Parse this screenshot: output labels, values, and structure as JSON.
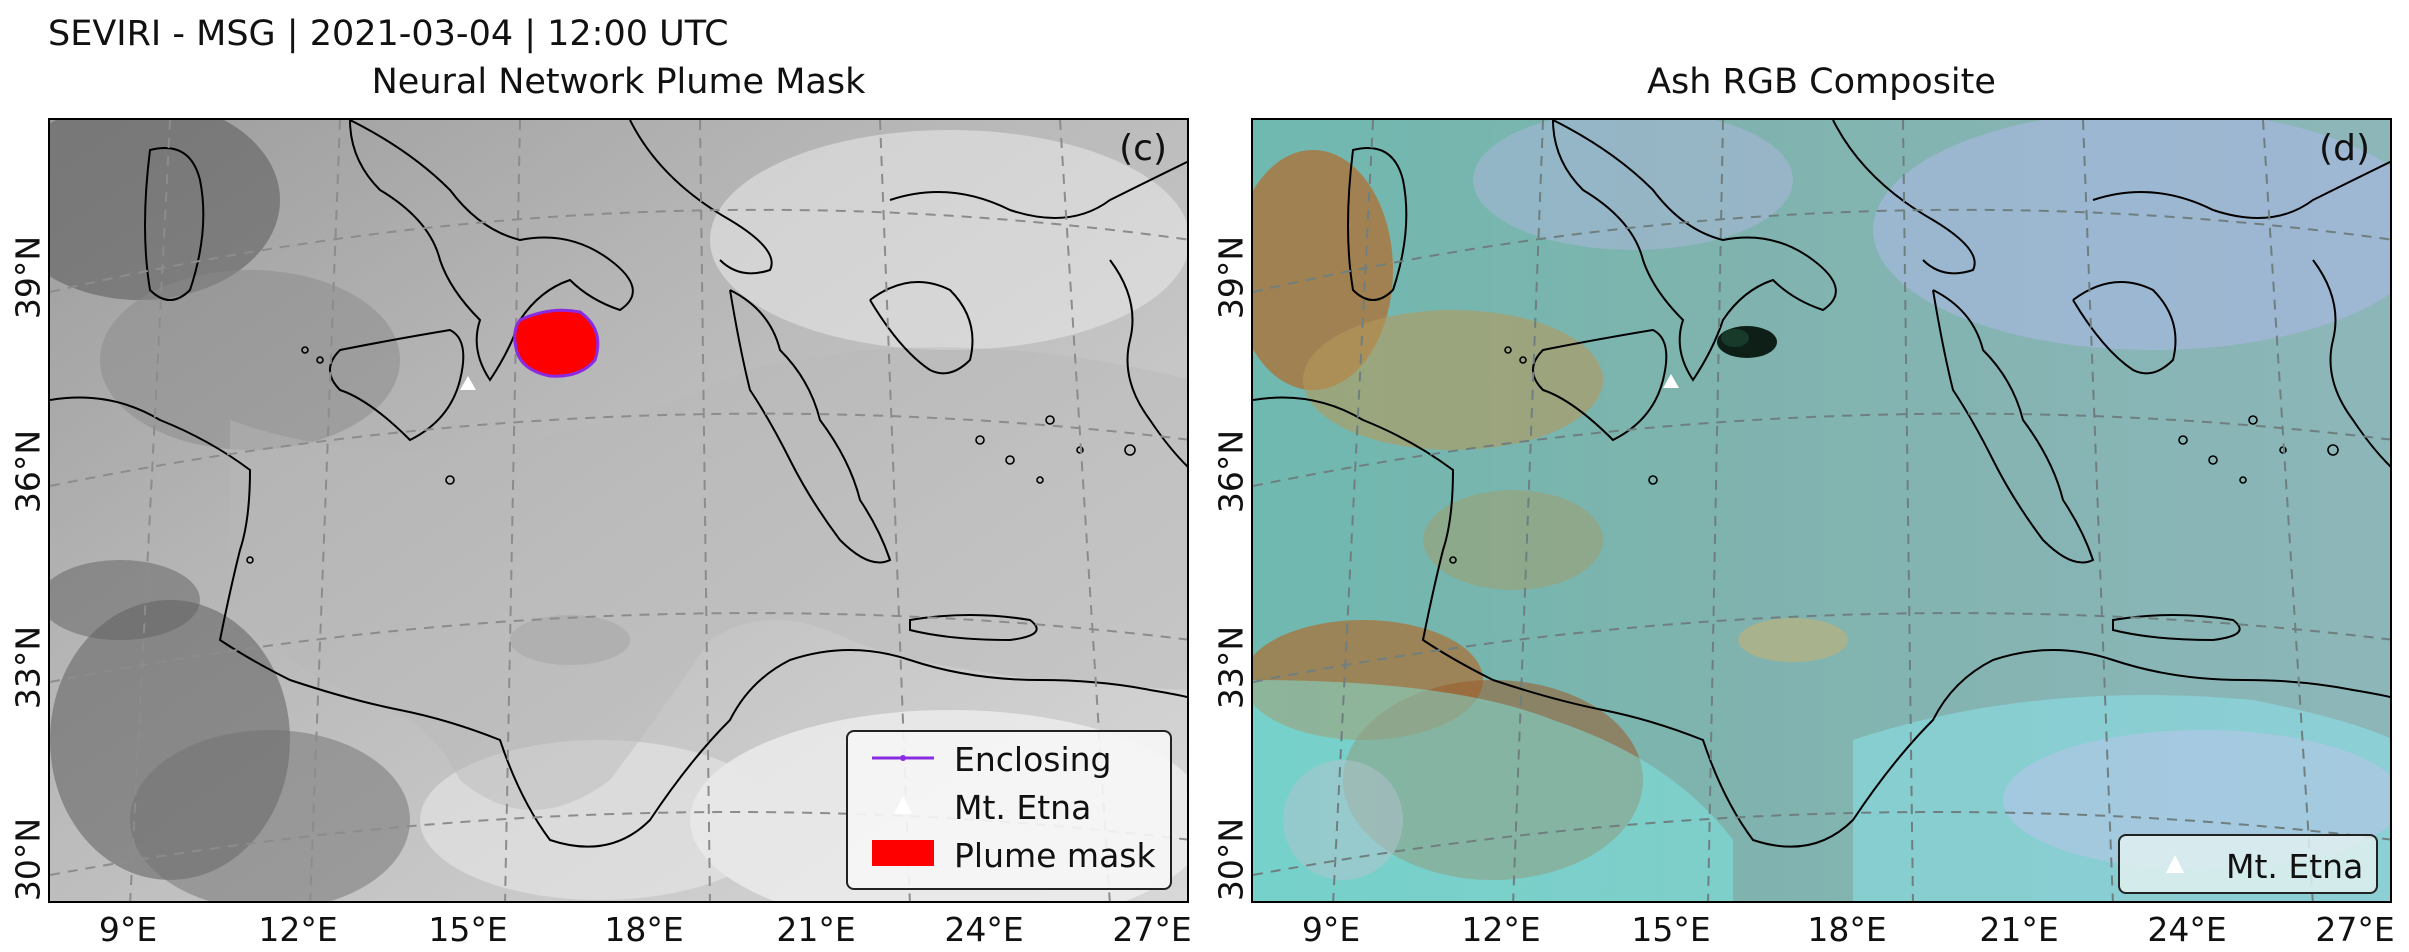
{
  "suptitle": "SEVIRI - MSG | 2021-03-04 | 12:00 UTC",
  "panels": [
    {
      "title": "Neural Network Plume Mask",
      "letter": "(c)",
      "legend": [
        {
          "label": "Enclosing",
          "symbol": "line-icon",
          "color": "#8a2be2"
        },
        {
          "label": "Mt. Etna",
          "symbol": "triangle-icon",
          "color": "#ffffff"
        },
        {
          "label": "Plume mask",
          "symbol": "patch-icon",
          "color": "#ff0000"
        }
      ]
    },
    {
      "title": "Ash RGB Composite",
      "letter": "(d)",
      "legend": [
        {
          "label": "Mt. Etna",
          "symbol": "triangle-icon",
          "color": "#ffffff"
        }
      ]
    }
  ],
  "axes": {
    "lat_labels": [
      "39°N",
      "36°N",
      "33°N",
      "30°N"
    ],
    "lon_labels": [
      "9°E",
      "12°E",
      "15°E",
      "18°E",
      "21°E",
      "24°E",
      "27°E"
    ]
  },
  "colors": {
    "plume": "#ff0000",
    "enclosing": "#8a2be2",
    "grid": "#8c8c8c",
    "coast": "#000000"
  }
}
